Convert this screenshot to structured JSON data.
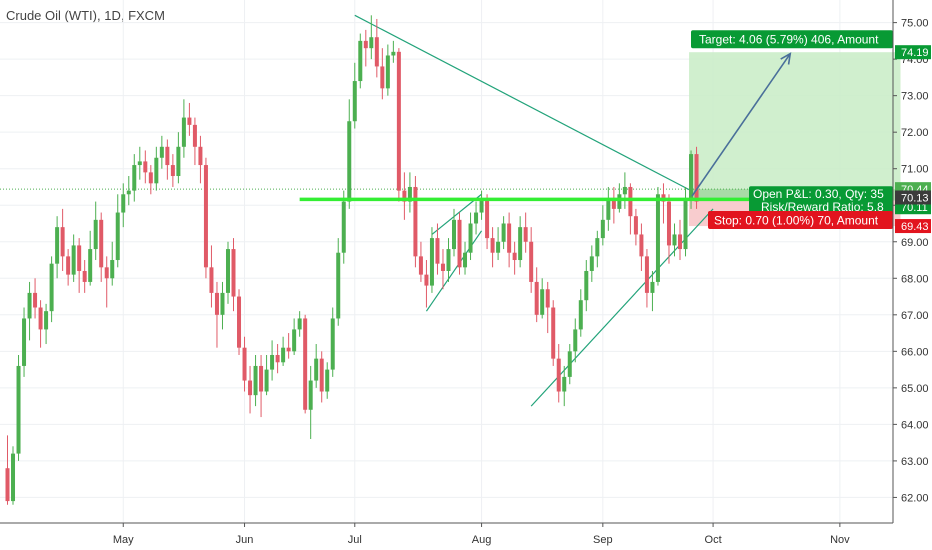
{
  "header": {
    "title": "Crude Oil (WTI), 1D, FXCM"
  },
  "chart_data": {
    "type": "candlestick",
    "symbol": "Crude Oil (WTI)",
    "interval": "1D",
    "exchange": "FXCM",
    "ylim": [
      61.3,
      75.4
    ],
    "y_ticks": [
      "62.00",
      "63.00",
      "64.00",
      "65.00",
      "66.00",
      "67.00",
      "68.00",
      "69.00",
      "70.00",
      "71.00",
      "72.00",
      "73.00",
      "74.00",
      "75.00"
    ],
    "x_labels": [
      {
        "label": "May",
        "bar": 21
      },
      {
        "label": "Jun",
        "bar": 43
      },
      {
        "label": "Jul",
        "bar": 63
      },
      {
        "label": "Aug",
        "bar": 86
      },
      {
        "label": "Sep",
        "bar": 108
      },
      {
        "label": "Oct",
        "bar": 128
      },
      {
        "label": "Nov",
        "bar": 151
      }
    ],
    "bar_count": 162,
    "candles": [
      [
        62.8,
        61.9,
        63.7,
        61.8
      ],
      [
        61.9,
        63.2,
        63.4,
        61.8
      ],
      [
        63.2,
        65.6,
        65.9,
        63.0
      ],
      [
        65.6,
        66.9,
        67.2,
        65.3
      ],
      [
        66.9,
        67.6,
        67.9,
        66.3
      ],
      [
        67.6,
        67.2,
        68.0,
        66.9
      ],
      [
        67.2,
        66.6,
        67.4,
        66.1
      ],
      [
        66.6,
        67.1,
        67.3,
        66.2
      ],
      [
        67.1,
        68.4,
        68.6,
        66.8
      ],
      [
        68.4,
        69.4,
        69.7,
        68.0
      ],
      [
        69.4,
        68.6,
        69.9,
        68.2
      ],
      [
        68.6,
        68.1,
        68.8,
        67.8
      ],
      [
        68.1,
        68.9,
        69.2,
        67.9
      ],
      [
        68.9,
        68.2,
        69.1,
        67.6
      ],
      [
        68.2,
        67.9,
        68.5,
        67.6
      ],
      [
        67.9,
        68.8,
        69.3,
        67.8
      ],
      [
        68.8,
        69.6,
        70.1,
        68.5
      ],
      [
        69.6,
        68.3,
        69.8,
        67.9
      ],
      [
        68.3,
        68.0,
        68.6,
        67.2
      ],
      [
        68.0,
        68.5,
        69.0,
        67.8
      ],
      [
        68.5,
        69.8,
        70.3,
        68.3
      ],
      [
        69.8,
        70.3,
        70.6,
        69.4
      ],
      [
        70.3,
        70.4,
        70.8,
        70.0
      ],
      [
        70.4,
        71.1,
        71.4,
        70.1
      ],
      [
        71.1,
        71.2,
        71.6,
        70.7
      ],
      [
        71.2,
        70.9,
        71.5,
        70.6
      ],
      [
        70.9,
        70.6,
        71.1,
        70.3
      ],
      [
        70.6,
        71.3,
        71.6,
        70.4
      ],
      [
        71.3,
        71.6,
        71.9,
        71.0
      ],
      [
        71.6,
        71.1,
        71.8,
        70.7
      ],
      [
        71.1,
        70.8,
        71.4,
        70.5
      ],
      [
        70.8,
        71.6,
        72.0,
        70.6
      ],
      [
        71.6,
        72.4,
        72.9,
        71.3
      ],
      [
        72.4,
        72.2,
        72.8,
        71.9
      ],
      [
        72.2,
        71.6,
        72.4,
        71.1
      ],
      [
        71.6,
        71.1,
        71.9,
        70.6
      ],
      [
        71.1,
        68.3,
        71.3,
        68.0
      ],
      [
        68.3,
        67.6,
        68.9,
        67.2
      ],
      [
        67.6,
        67.0,
        67.9,
        66.1
      ],
      [
        67.0,
        67.6,
        67.9,
        66.6
      ],
      [
        67.6,
        68.8,
        69.0,
        67.3
      ],
      [
        68.8,
        67.5,
        69.1,
        67.1
      ],
      [
        67.5,
        66.1,
        67.7,
        65.9
      ],
      [
        66.1,
        65.2,
        66.4,
        64.9
      ],
      [
        65.2,
        64.8,
        65.6,
        64.3
      ],
      [
        64.8,
        65.6,
        65.9,
        64.5
      ],
      [
        65.6,
        64.9,
        65.9,
        64.2
      ],
      [
        64.9,
        65.5,
        65.9,
        64.8
      ],
      [
        65.5,
        65.9,
        66.3,
        65.2
      ],
      [
        65.9,
        65.7,
        66.2,
        65.4
      ],
      [
        65.7,
        66.1,
        66.4,
        65.6
      ],
      [
        66.1,
        66.0,
        66.5,
        65.8
      ],
      [
        66.0,
        66.6,
        66.9,
        65.9
      ],
      [
        66.6,
        66.9,
        67.1,
        66.4
      ],
      [
        66.9,
        64.4,
        67.0,
        64.3
      ],
      [
        64.4,
        65.2,
        65.6,
        63.6
      ],
      [
        65.2,
        65.8,
        66.2,
        65.0
      ],
      [
        65.8,
        64.9,
        66.0,
        64.6
      ],
      [
        64.9,
        65.5,
        65.7,
        64.7
      ],
      [
        65.5,
        66.9,
        67.2,
        65.3
      ],
      [
        66.9,
        68.7,
        69.1,
        66.7
      ],
      [
        68.7,
        70.1,
        70.4,
        68.4
      ],
      [
        70.1,
        72.3,
        72.9,
        69.9
      ],
      [
        72.3,
        73.4,
        73.9,
        72.1
      ],
      [
        73.4,
        74.5,
        74.7,
        73.2
      ],
      [
        74.5,
        74.3,
        74.8,
        73.8
      ],
      [
        74.3,
        74.6,
        75.2,
        74.0
      ],
      [
        74.6,
        73.8,
        75.1,
        73.5
      ],
      [
        73.8,
        73.2,
        74.3,
        72.9
      ],
      [
        73.2,
        74.1,
        74.4,
        73.0
      ],
      [
        74.1,
        74.2,
        74.5,
        73.9
      ],
      [
        74.2,
        70.4,
        74.3,
        70.1
      ],
      [
        70.4,
        70.1,
        70.9,
        69.6
      ],
      [
        70.1,
        70.5,
        70.9,
        69.8
      ],
      [
        70.5,
        68.6,
        70.8,
        68.3
      ],
      [
        68.6,
        68.1,
        69.0,
        67.9
      ],
      [
        68.1,
        67.8,
        68.5,
        67.2
      ],
      [
        67.8,
        69.1,
        69.4,
        67.6
      ],
      [
        69.1,
        68.4,
        69.5,
        68.1
      ],
      [
        68.4,
        68.2,
        68.8,
        67.7
      ],
      [
        68.2,
        68.8,
        69.1,
        67.9
      ],
      [
        68.8,
        69.6,
        69.9,
        68.6
      ],
      [
        69.6,
        68.3,
        69.8,
        68.1
      ],
      [
        68.3,
        68.7,
        69.0,
        68.1
      ],
      [
        68.7,
        69.5,
        69.8,
        68.5
      ],
      [
        69.5,
        69.8,
        70.1,
        69.2
      ],
      [
        69.8,
        70.2,
        70.4,
        69.6
      ],
      [
        70.2,
        69.1,
        70.3,
        68.8
      ],
      [
        69.1,
        68.7,
        69.4,
        68.3
      ],
      [
        68.7,
        69.0,
        69.4,
        68.5
      ],
      [
        69.0,
        69.5,
        69.7,
        68.8
      ],
      [
        69.5,
        68.7,
        69.8,
        68.3
      ],
      [
        68.7,
        68.5,
        69.0,
        68.1
      ],
      [
        68.5,
        69.4,
        69.7,
        68.3
      ],
      [
        69.4,
        69.0,
        69.8,
        68.7
      ],
      [
        69.0,
        67.9,
        69.4,
        67.6
      ],
      [
        67.9,
        67.0,
        68.3,
        66.8
      ],
      [
        67.0,
        67.7,
        68.0,
        66.9
      ],
      [
        67.7,
        67.2,
        67.9,
        66.5
      ],
      [
        67.2,
        65.8,
        67.4,
        65.6
      ],
      [
        65.8,
        64.9,
        66.2,
        64.6
      ],
      [
        64.9,
        65.3,
        65.6,
        64.5
      ],
      [
        65.3,
        66.0,
        66.2,
        65.1
      ],
      [
        66.0,
        66.6,
        66.9,
        65.7
      ],
      [
        66.6,
        67.4,
        67.7,
        66.4
      ],
      [
        67.4,
        68.2,
        68.5,
        67.1
      ],
      [
        68.2,
        68.6,
        68.9,
        67.9
      ],
      [
        68.6,
        69.1,
        69.3,
        68.3
      ],
      [
        69.1,
        69.6,
        70.0,
        68.9
      ],
      [
        69.6,
        70.2,
        70.5,
        69.3
      ],
      [
        70.2,
        69.9,
        70.5,
        69.5
      ],
      [
        69.9,
        70.3,
        70.6,
        69.8
      ],
      [
        70.3,
        70.5,
        70.9,
        69.9
      ],
      [
        70.5,
        69.7,
        70.6,
        69.2
      ],
      [
        69.7,
        69.2,
        69.9,
        68.9
      ],
      [
        69.2,
        68.6,
        69.5,
        68.2
      ],
      [
        68.6,
        67.6,
        68.8,
        67.2
      ],
      [
        67.6,
        67.9,
        68.2,
        67.1
      ],
      [
        67.9,
        70.3,
        70.5,
        67.8
      ],
      [
        70.3,
        70.1,
        70.6,
        69.5
      ],
      [
        70.1,
        68.9,
        70.3,
        68.4
      ],
      [
        68.9,
        69.2,
        69.5,
        68.6
      ],
      [
        69.2,
        68.8,
        69.6,
        68.5
      ],
      [
        68.8,
        70.2,
        70.5,
        68.6
      ],
      [
        70.2,
        71.4,
        71.5,
        69.9
      ],
      [
        71.4,
        70.1,
        71.6,
        69.9
      ]
    ],
    "trendlines": [
      {
        "name": "descending-trendline",
        "points": [
          [
            63,
            75.2
          ],
          [
            124,
            70.4
          ]
        ]
      },
      {
        "name": "ascending-trendline",
        "points": [
          [
            95,
            64.5
          ],
          [
            128,
            69.9
          ]
        ]
      },
      {
        "name": "flag-lower",
        "points": [
          [
            76,
            67.1
          ],
          [
            86,
            69.3
          ]
        ]
      },
      {
        "name": "flag-upper",
        "points": [
          [
            77,
            69.2
          ],
          [
            86,
            70.3
          ]
        ]
      }
    ],
    "support_line": {
      "value": 70.16,
      "from_bar": 53,
      "to_bar": 136,
      "color": "#33ee33"
    },
    "current_price_line": {
      "value": 70.44
    },
    "position": {
      "entry_bar": 124,
      "end_bar": 162,
      "entry": 70.13,
      "target": 74.19,
      "stop": 69.43,
      "target_label": "Target: 4.06 (5.79%) 406, Amount",
      "stop_label": "Stop: 0.70 (1.00%) 70, Amount",
      "pnl_label": "Open P&L: 0.30, Qty: 35",
      "rr_label": "Risk/Reward Ratio: 5.8",
      "arrow_to": {
        "bar": 142,
        "price": 74.15
      }
    },
    "price_tags": [
      {
        "value": 74.19,
        "label": "74.19",
        "color": "#089a34",
        "text_color": "#ffffff"
      },
      {
        "value": 70.44,
        "label": "70.44",
        "color": "#4caf50",
        "text_color": "#ffffff"
      },
      {
        "value": 70.11,
        "label": "70.11",
        "color": "#089a34",
        "text_color": "#ffffff"
      },
      {
        "value": 70.13,
        "label": "70.13",
        "color": "#3b3b3b",
        "text_color": "#ffffff"
      },
      {
        "value": 69.43,
        "label": "69.43",
        "color": "#e2141e",
        "text_color": "#ffffff"
      }
    ],
    "colors": {
      "up": "#4caf50",
      "down": "#e05a67",
      "grid": "#eef0f3",
      "axis_text": "#333333"
    }
  }
}
